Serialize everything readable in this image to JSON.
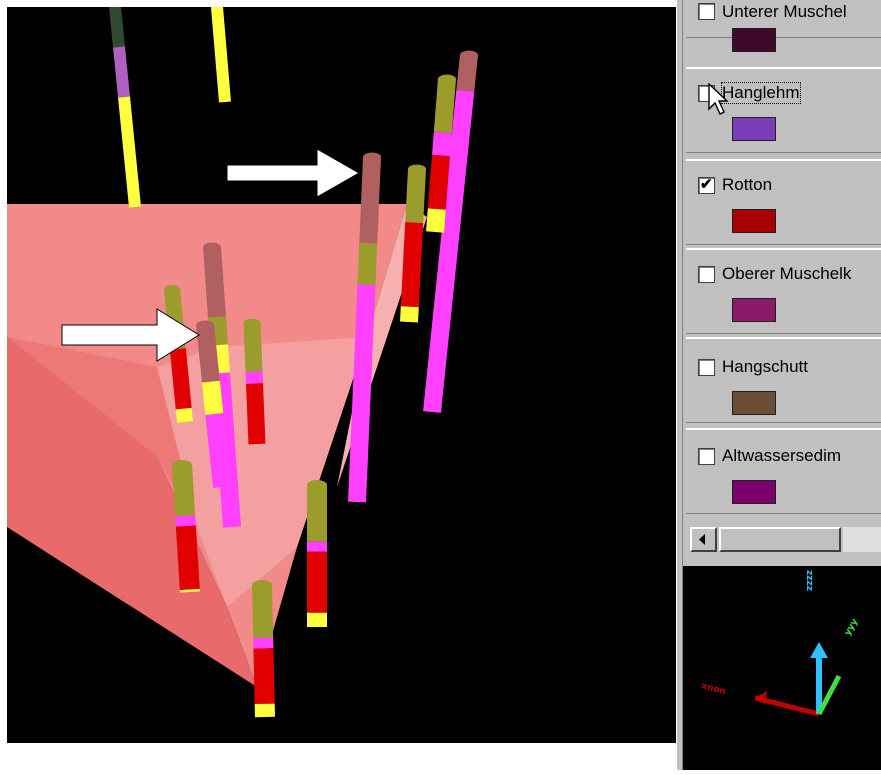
{
  "legend": {
    "items": [
      {
        "label": "Unterer Muschel",
        "checked": false,
        "color": "#3d0a2a"
      },
      {
        "label": "Hanglehm",
        "checked": false,
        "color": "#7a3fb8"
      },
      {
        "label": "Rotton",
        "checked": true,
        "color": "#a80000"
      },
      {
        "label": "Oberer Muschelk",
        "checked": false,
        "color": "#8b1a6b"
      },
      {
        "label": "Hangschutt",
        "checked": false,
        "color": "#6b4c35"
      },
      {
        "label": "Altwassersedim",
        "checked": false,
        "color": "#7a006b"
      }
    ]
  },
  "axes": {
    "x_label": "xnon",
    "y_label": "yyy",
    "z_label": "zzzz"
  },
  "colors": {
    "surface": "#f08080",
    "olive": "#9c9c2c",
    "red": "#e00000",
    "magenta": "#ff40ff",
    "yellow": "#ffff40",
    "rose": "#b06060",
    "arrow": "#ffffff"
  }
}
